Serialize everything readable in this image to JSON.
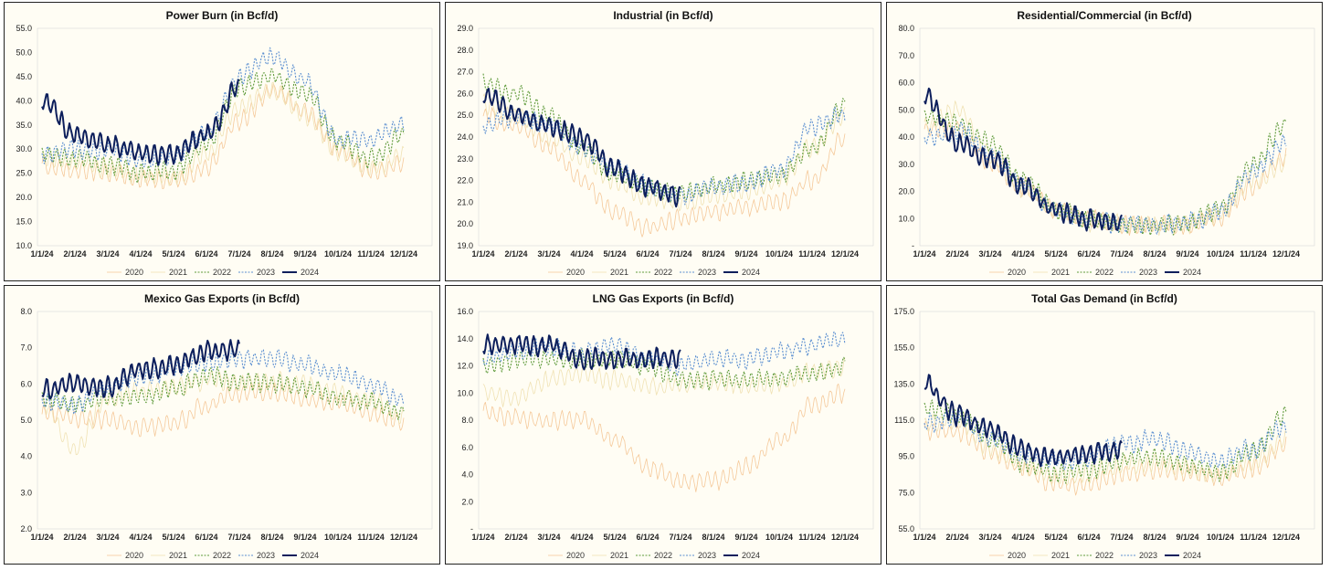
{
  "colors": {
    "2020": "#f5c99a",
    "2021": "#f0e2b4",
    "2022": "#5e9a3a",
    "2023": "#5b8fd0",
    "2024": "#0d1f5c",
    "background": "#fffdf4"
  },
  "chart_data": [
    {
      "type": "line",
      "title": "Power Burn (in Bcf/d)",
      "x_tick_labels": [
        "1/1/24",
        "2/1/24",
        "3/1/24",
        "4/1/24",
        "5/1/24",
        "6/1/24",
        "7/1/24",
        "8/1/24",
        "9/1/24",
        "10/1/24",
        "11/1/24",
        "12/1/24"
      ],
      "y_tick_labels": [
        "10.0",
        "15.0",
        "20.0",
        "25.0",
        "30.0",
        "35.0",
        "40.0",
        "45.0",
        "50.0",
        "55.0"
      ],
      "ylim": [
        10,
        55
      ],
      "legend": [
        "2020",
        "2021",
        "2022",
        "2023",
        "2024"
      ],
      "series_months": [
        {
          "name": "2020",
          "values": [
            26.5,
            25.5,
            25,
            24,
            23.5,
            26,
            36,
            42,
            38,
            30,
            25.5,
            27
          ]
        },
        {
          "name": "2021",
          "values": [
            28,
            27.5,
            26,
            24.5,
            24,
            29,
            39,
            42,
            37,
            29.5,
            26,
            28.5
          ]
        },
        {
          "name": "2022",
          "values": [
            29,
            28,
            26.5,
            25,
            25.5,
            31,
            43,
            45,
            42,
            32,
            28,
            33
          ]
        },
        {
          "name": "2023",
          "values": [
            29,
            30,
            30,
            28,
            28.5,
            33,
            45,
            49,
            44,
            32,
            32,
            35
          ]
        },
        {
          "name": "2024",
          "values": [
            40,
            33,
            31,
            29,
            29,
            33,
            43
          ]
        }
      ]
    },
    {
      "type": "line",
      "title": "Industrial (in Bcf/d)",
      "x_tick_labels": [
        "1/1/24",
        "2/1/24",
        "3/1/24",
        "4/1/24",
        "5/1/24",
        "6/1/24",
        "7/1/24",
        "8/1/24",
        "9/1/24",
        "10/1/24",
        "11/1/24",
        "12/1/24"
      ],
      "y_tick_labels": [
        "19.0",
        "20.0",
        "21.0",
        "22.0",
        "23.0",
        "24.0",
        "25.0",
        "26.0",
        "27.0",
        "28.0",
        "29.0"
      ],
      "ylim": [
        19,
        29
      ],
      "legend": [
        "2020",
        "2021",
        "2022",
        "2023",
        "2024"
      ],
      "series_months": [
        {
          "name": "2020",
          "values": [
            25,
            24.5,
            23.5,
            22,
            20.5,
            19.8,
            20.2,
            20.5,
            20.8,
            21,
            22,
            24
          ]
        },
        {
          "name": "2021",
          "values": [
            25.5,
            25,
            24,
            23,
            22,
            21.2,
            21,
            21.3,
            21.5,
            22,
            23.5,
            25
          ]
        },
        {
          "name": "2022",
          "values": [
            26.5,
            26,
            25,
            23.5,
            22.3,
            21.6,
            21.4,
            21.7,
            22,
            22.2,
            23.5,
            25.5
          ]
        },
        {
          "name": "2023",
          "values": [
            24.5,
            25,
            24.5,
            23.5,
            22.5,
            21.8,
            21.3,
            21.7,
            21.9,
            22.5,
            24.5,
            25
          ]
        },
        {
          "name": "2024",
          "values": [
            26,
            25,
            24.5,
            24,
            22.5,
            21.7,
            21.3
          ]
        }
      ]
    },
    {
      "type": "line",
      "title": "Residential/Commercial (in Bcf/d)",
      "x_tick_labels": [
        "1/1/24",
        "2/1/24",
        "3/1/24",
        "4/1/24",
        "5/1/24",
        "6/1/24",
        "7/1/24",
        "8/1/24",
        "9/1/24",
        "10/1/24",
        "11/1/24",
        "12/1/24"
      ],
      "y_tick_labels": [
        "-",
        "10.0",
        "20.0",
        "30.0",
        "40.0",
        "50.0",
        "60.0",
        "70.0",
        "80.0"
      ],
      "ylim": [
        0,
        80
      ],
      "legend": [
        "2020",
        "2021",
        "2022",
        "2023",
        "2024"
      ],
      "series_months": [
        {
          "name": "2020",
          "values": [
            42,
            43,
            30,
            22,
            13,
            9.5,
            8,
            7.5,
            8,
            11,
            22,
            33
          ]
        },
        {
          "name": "2021",
          "values": [
            44,
            50,
            33,
            21,
            13,
            9,
            8,
            7.5,
            8,
            12,
            24,
            30
          ]
        },
        {
          "name": "2022",
          "values": [
            48,
            45,
            38,
            24,
            14,
            9.5,
            8,
            7.5,
            8,
            14,
            30,
            45
          ]
        },
        {
          "name": "2023",
          "values": [
            40,
            42,
            34,
            22,
            13,
            9.5,
            8,
            7.5,
            8.5,
            13,
            27,
            38
          ]
        },
        {
          "name": "2024",
          "values": [
            55,
            38,
            32,
            22,
            13,
            9.5,
            9
          ]
        }
      ]
    },
    {
      "type": "line",
      "title": "Mexico Gas Exports (in Bcf/d)",
      "x_tick_labels": [
        "1/1/24",
        "2/1/24",
        "3/1/24",
        "4/1/24",
        "5/1/24",
        "6/1/24",
        "7/1/24",
        "8/1/24",
        "9/1/24",
        "10/1/24",
        "11/1/24",
        "12/1/24"
      ],
      "y_tick_labels": [
        "2.0",
        "3.0",
        "4.0",
        "5.0",
        "6.0",
        "7.0",
        "8.0"
      ],
      "ylim": [
        2,
        8
      ],
      "legend": [
        "2020",
        "2021",
        "2022",
        "2023",
        "2024"
      ],
      "series_months": [
        {
          "name": "2020",
          "values": [
            5.2,
            5.1,
            5.0,
            4.8,
            4.9,
            5.4,
            5.8,
            5.8,
            5.6,
            5.5,
            5.2,
            4.9
          ]
        },
        {
          "name": "2021",
          "values": [
            5.5,
            4.2,
            5.6,
            5.8,
            5.9,
            6.1,
            6.0,
            6.1,
            6.0,
            5.7,
            5.6,
            5.1
          ]
        },
        {
          "name": "2022",
          "values": [
            5.6,
            5.4,
            5.6,
            5.6,
            5.9,
            6.2,
            6.1,
            6.0,
            5.9,
            5.6,
            5.5,
            5.2
          ]
        },
        {
          "name": "2023",
          "values": [
            5.5,
            5.4,
            5.9,
            6.2,
            6.4,
            6.6,
            6.7,
            6.7,
            6.5,
            6.3,
            6.0,
            5.5
          ]
        },
        {
          "name": "2024",
          "values": [
            5.8,
            6.0,
            5.9,
            6.4,
            6.5,
            6.9,
            6.9
          ]
        }
      ]
    },
    {
      "type": "line",
      "title": "LNG Gas Exports (in Bcf/d)",
      "x_tick_labels": [
        "1/1/24",
        "2/1/24",
        "3/1/24",
        "4/1/24",
        "5/1/24",
        "6/1/24",
        "7/1/24",
        "8/1/24",
        "9/1/24",
        "10/1/24",
        "11/1/24",
        "12/1/24"
      ],
      "y_tick_labels": [
        "-",
        "2.0",
        "4.0",
        "6.0",
        "8.0",
        "10.0",
        "12.0",
        "14.0",
        "16.0"
      ],
      "ylim": [
        0,
        16
      ],
      "legend": [
        "2020",
        "2021",
        "2022",
        "2023",
        "2024"
      ],
      "series_months": [
        {
          "name": "2020",
          "values": [
            8.5,
            8.2,
            8,
            8,
            6.5,
            4.5,
            3.5,
            3.5,
            4.5,
            6.5,
            9,
            10
          ]
        },
        {
          "name": "2021",
          "values": [
            10,
            9.5,
            11,
            11.5,
            11,
            10.5,
            10.5,
            10.8,
            10.5,
            10.8,
            11.5,
            12
          ]
        },
        {
          "name": "2022",
          "values": [
            12,
            12.5,
            12.5,
            12.5,
            12.5,
            12,
            11,
            11,
            11,
            11,
            11.5,
            12
          ]
        },
        {
          "name": "2023",
          "values": [
            12.5,
            13,
            13.5,
            13,
            13.5,
            12.5,
            12,
            12.5,
            12.5,
            13,
            13.5,
            14
          ]
        },
        {
          "name": "2024",
          "values": [
            13.5,
            13.5,
            13.5,
            12.5,
            12.5,
            12.5,
            12.5
          ]
        }
      ]
    },
    {
      "type": "line",
      "title": "Total Gas Demand (in Bcf/d)",
      "x_tick_labels": [
        "1/1/24",
        "2/1/24",
        "3/1/24",
        "4/1/24",
        "5/1/24",
        "6/1/24",
        "7/1/24",
        "8/1/24",
        "9/1/24",
        "10/1/24",
        "11/1/24",
        "12/1/24"
      ],
      "y_tick_labels": [
        "55.0",
        "75.0",
        "95.0",
        "115.0",
        "135.0",
        "155.0",
        "175.0"
      ],
      "ylim": [
        55,
        175
      ],
      "legend": [
        "2020",
        "2021",
        "2022",
        "2023",
        "2024"
      ],
      "series_months": [
        {
          "name": "2020",
          "values": [
            110,
            108,
            98,
            88,
            80,
            80,
            86,
            88,
            86,
            84,
            88,
            102
          ]
        },
        {
          "name": "2021",
          "values": [
            112,
            116,
            100,
            90,
            84,
            85,
            90,
            92,
            88,
            85,
            92,
            105
          ]
        },
        {
          "name": "2022",
          "values": [
            122,
            118,
            105,
            92,
            86,
            87,
            93,
            95,
            90,
            86,
            98,
            118
          ]
        },
        {
          "name": "2023",
          "values": [
            113,
            116,
            105,
            96,
            92,
            94,
            102,
            104,
            98,
            93,
            100,
            112
          ]
        },
        {
          "name": "2024",
          "values": [
            135,
            118,
            110,
            98,
            94,
            96,
            99
          ]
        }
      ]
    }
  ]
}
